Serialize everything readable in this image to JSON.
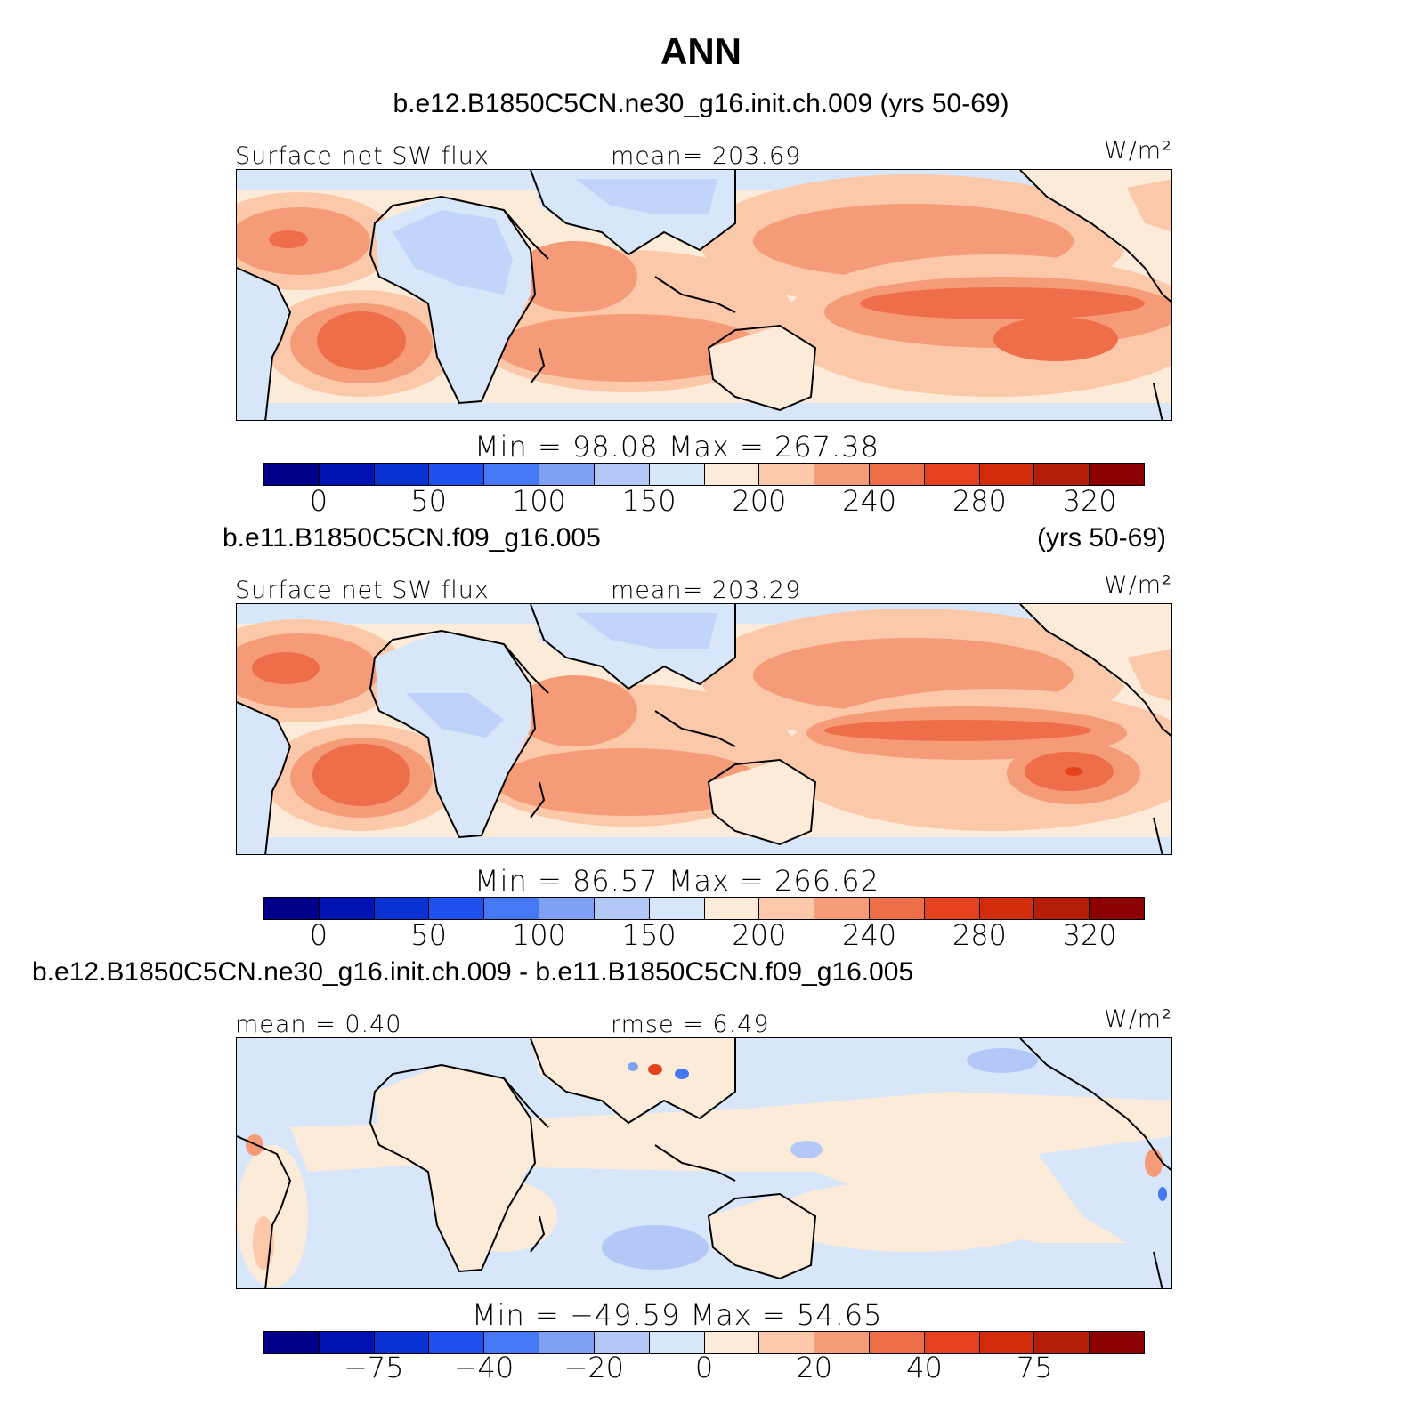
{
  "title": "ANN",
  "panels": [
    {
      "case_title": "b.e12.B1850C5CN.ne30_g16.init.ch.009 (yrs 50-69)",
      "variable": "Surface net SW flux",
      "stat_text": "mean= 203.69",
      "units": "W/m²",
      "minmax_text": "Min =   98.08  Max =  267.38",
      "colorbar_ticks": [
        "0",
        "50",
        "100",
        "150",
        "200",
        "240",
        "280",
        "320"
      ],
      "kind": "absolute"
    },
    {
      "case_title": "b.e11.B1850C5CN.f09_g16.005",
      "case_years": "(yrs 50-69)",
      "variable": "Surface net SW flux",
      "stat_text": "mean= 203.29",
      "units": "W/m²",
      "minmax_text": "Min =   86.57  Max =  266.62",
      "colorbar_ticks": [
        "0",
        "50",
        "100",
        "150",
        "200",
        "240",
        "280",
        "320"
      ],
      "kind": "absolute"
    },
    {
      "case_title": "b.e12.B1850C5CN.ne30_g16.init.ch.009 - b.e11.B1850C5CN.f09_g16.005",
      "stat_left": "mean =    0.40",
      "stat_text": "rmse =    6.49",
      "units": "W/m²",
      "minmax_text": "Min = −49.59  Max =   54.65",
      "colorbar_ticks": [
        "−75",
        "−40",
        "−20",
        "0",
        "20",
        "40",
        "75"
      ],
      "kind": "difference"
    }
  ],
  "colorbar_colors": [
    "#00008b",
    "#0014b4",
    "#0a32d2",
    "#1e50f0",
    "#4678f5",
    "#7ea0f5",
    "#b4c8f8",
    "#d8e6fa",
    "#fdebd9",
    "#fbc8aa",
    "#f59b78",
    "#ee6e4a",
    "#e6411e",
    "#d22d0a",
    "#b41e08",
    "#8b0000"
  ]
}
